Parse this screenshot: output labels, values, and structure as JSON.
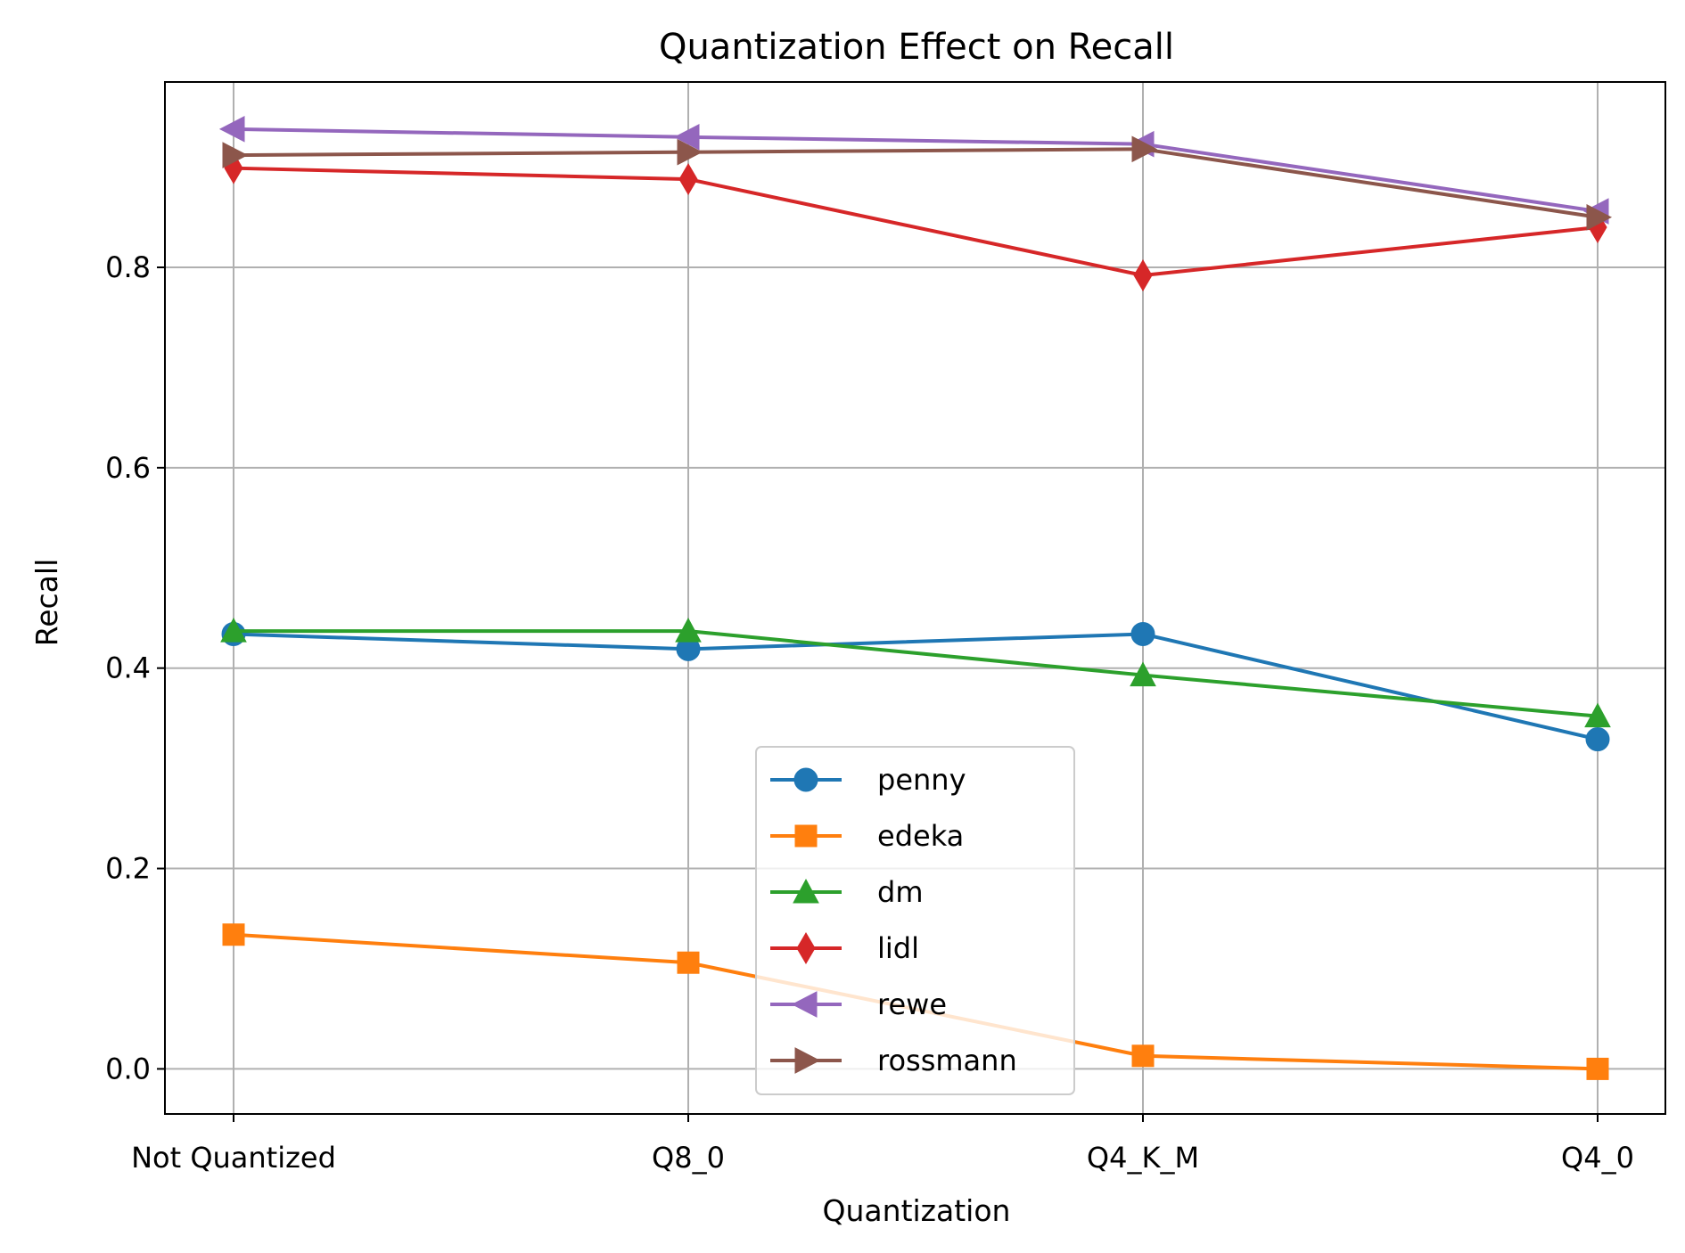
{
  "chart_data": {
    "type": "line",
    "title": "Quantization Effect on Recall",
    "xlabel": "Quantization",
    "ylabel": "Recall",
    "categories": [
      "Not Quantized",
      "Q8_0",
      "Q4_K_M",
      "Q4_0"
    ],
    "ylim": [
      -0.045,
      0.985
    ],
    "yticks": [
      0.0,
      0.2,
      0.4,
      0.6,
      0.8
    ],
    "ytick_labels": [
      "0.0",
      "0.2",
      "0.4",
      "0.6",
      "0.8"
    ],
    "grid": true,
    "legend_position": "lower-center",
    "series": [
      {
        "name": "penny",
        "color": "#1f77b4",
        "marker": "circle",
        "values": [
          0.434,
          0.419,
          0.434,
          0.329
        ]
      },
      {
        "name": "edeka",
        "color": "#ff7f0e",
        "marker": "square",
        "values": [
          0.134,
          0.106,
          0.013,
          0.0
        ]
      },
      {
        "name": "dm",
        "color": "#2ca02c",
        "marker": "triangle-up",
        "values": [
          0.437,
          0.437,
          0.393,
          0.352
        ]
      },
      {
        "name": "lidl",
        "color": "#d62728",
        "marker": "thin-diamond",
        "values": [
          0.899,
          0.888,
          0.792,
          0.84
        ]
      },
      {
        "name": "rewe",
        "color": "#9467bd",
        "marker": "triangle-left",
        "values": [
          0.938,
          0.93,
          0.923,
          0.856
        ]
      },
      {
        "name": "rossmann",
        "color": "#8c564b",
        "marker": "triangle-right",
        "values": [
          0.912,
          0.915,
          0.918,
          0.85
        ]
      }
    ]
  }
}
